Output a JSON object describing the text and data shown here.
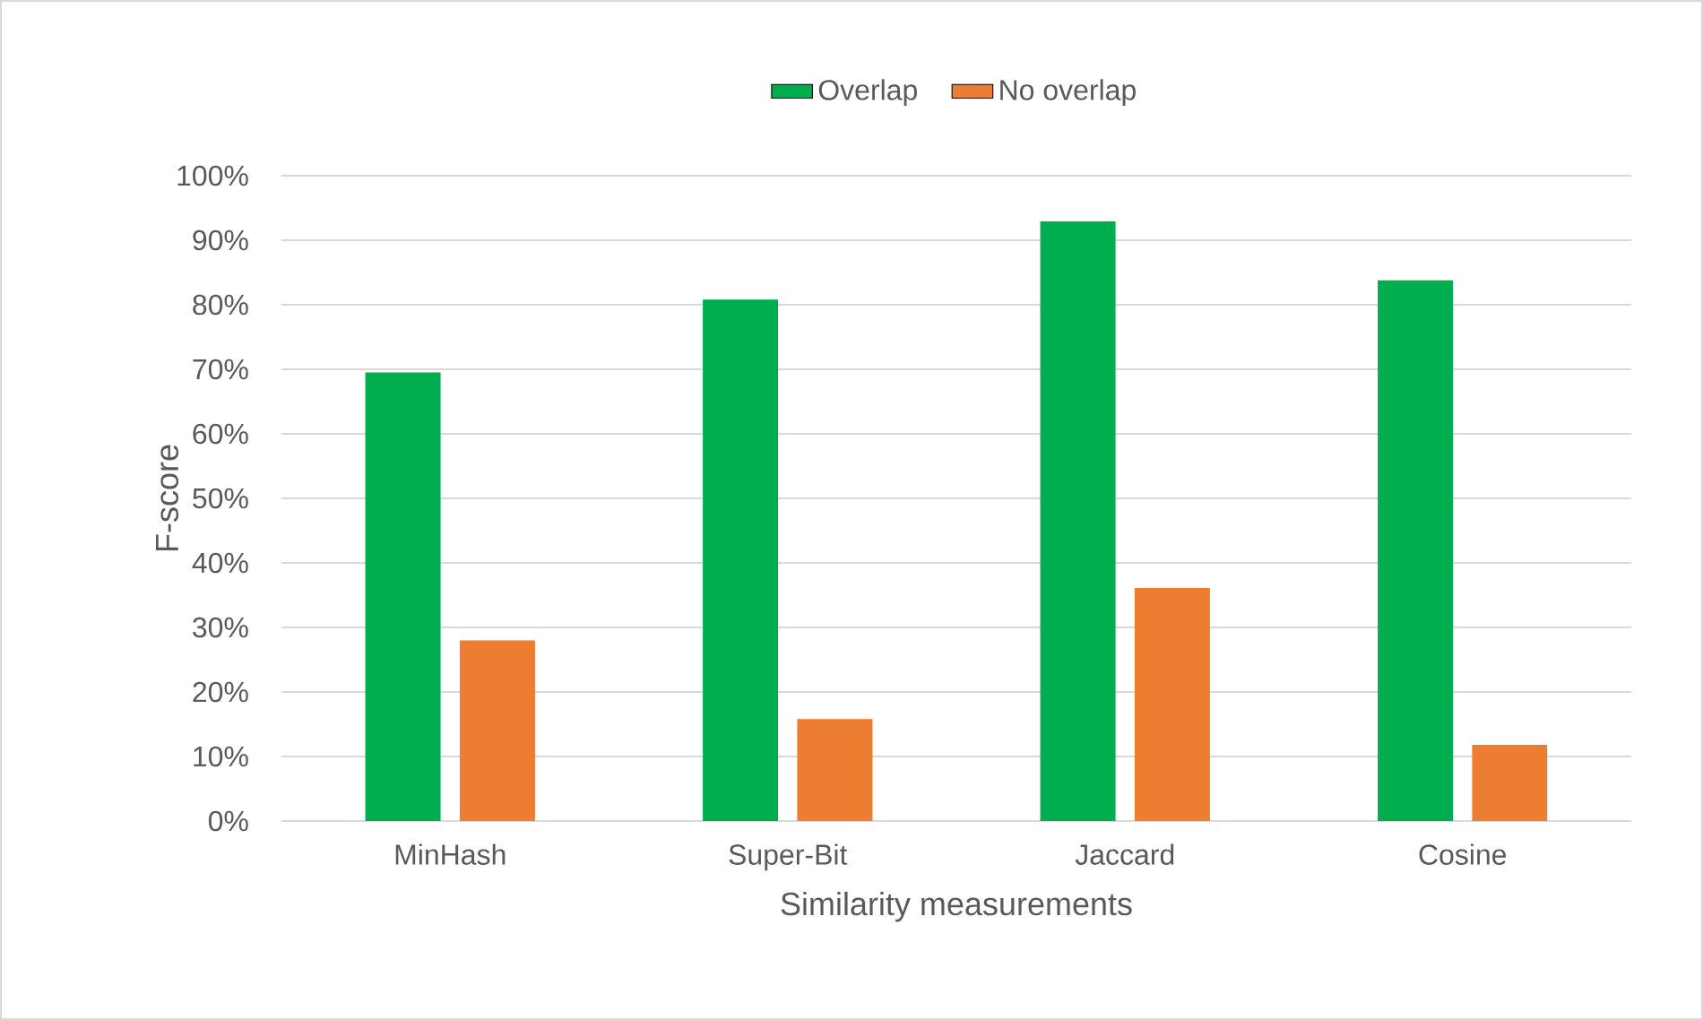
{
  "chart_data": {
    "type": "bar",
    "xlabel": "Similarity measurements",
    "ylabel": "F-score",
    "categories": [
      "MinHash",
      "Super-Bit",
      "Jaccard",
      "Cosine"
    ],
    "series": [
      {
        "name": "Overlap",
        "color": "#00ae50",
        "values": [
          69.5,
          80.8,
          92.9,
          83.8
        ]
      },
      {
        "name": "No overlap",
        "color": "#ed7d31",
        "values": [
          28.0,
          15.8,
          36.1,
          11.8
        ]
      }
    ],
    "ylim": [
      0,
      100
    ],
    "yticks": [
      {
        "value": 0,
        "label": "0%"
      },
      {
        "value": 10,
        "label": "10%"
      },
      {
        "value": 20,
        "label": "20%"
      },
      {
        "value": 30,
        "label": "30%"
      },
      {
        "value": 40,
        "label": "40%"
      },
      {
        "value": 50,
        "label": "50%"
      },
      {
        "value": 60,
        "label": "60%"
      },
      {
        "value": 70,
        "label": "70%"
      },
      {
        "value": 80,
        "label": "80%"
      },
      {
        "value": 90,
        "label": "90%"
      },
      {
        "value": 100,
        "label": "100%"
      }
    ],
    "grid": "y",
    "legend": "top"
  }
}
